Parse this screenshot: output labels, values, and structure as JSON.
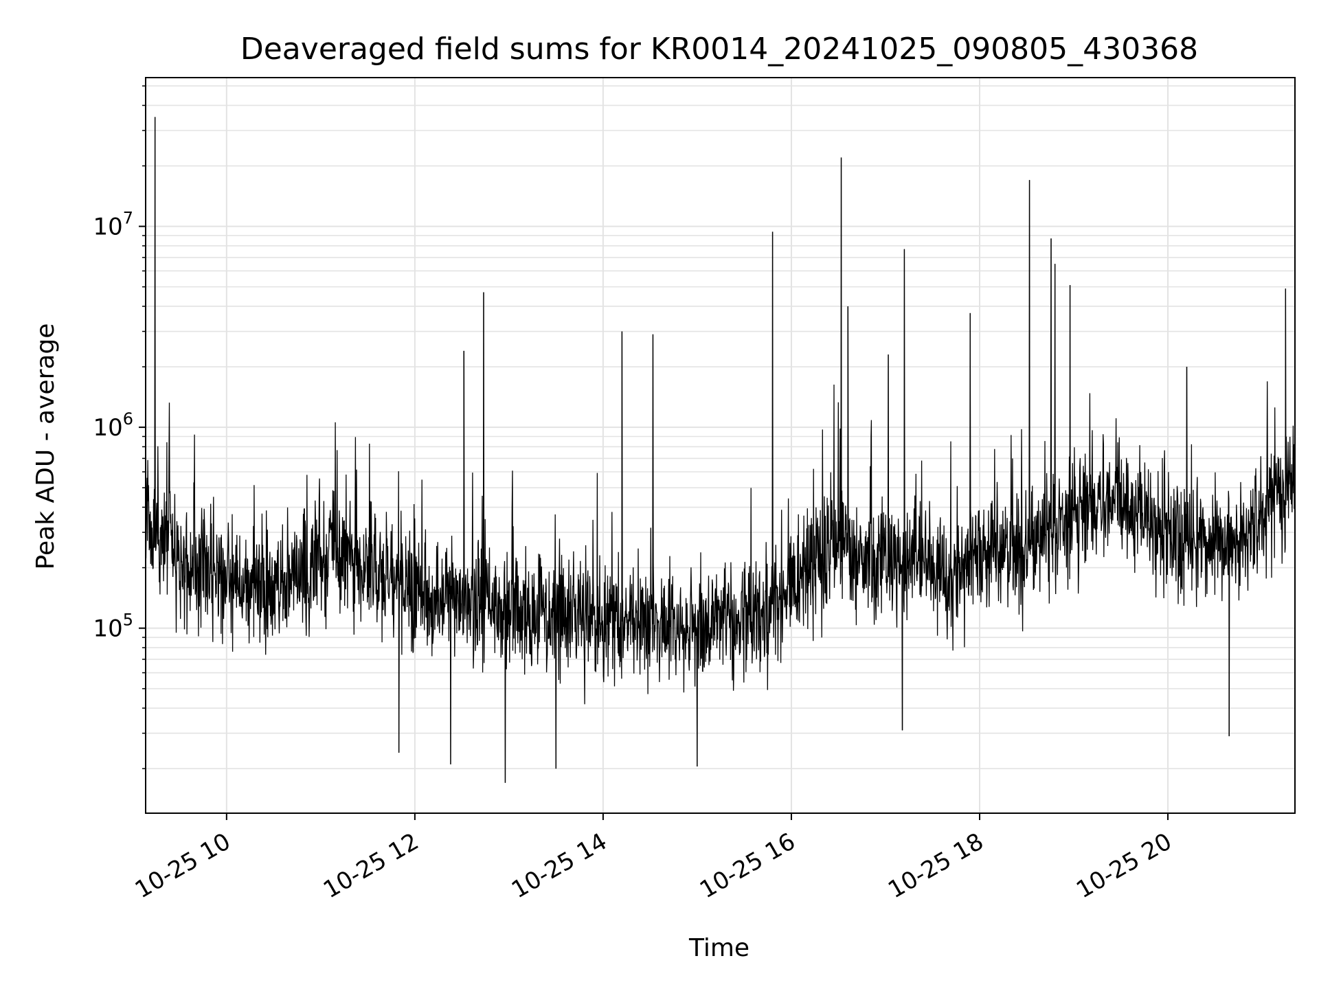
{
  "chart_data": {
    "type": "line",
    "title": "Deaveraged field sums for KR0014_20241025_090805_430368",
    "xlabel": "Time",
    "ylabel": "Peak ADU - average",
    "x_range": [
      "2024-10-25 09:08",
      "2024-10-25 21:20"
    ],
    "xlim_hours": [
      9.14,
      21.35
    ],
    "y_scale": "log",
    "ylim": [
      12000,
      55000000
    ],
    "x_ticks": [
      {
        "hour": 10,
        "label": "10-25 10"
      },
      {
        "hour": 12,
        "label": "10-25 12"
      },
      {
        "hour": 14,
        "label": "10-25 14"
      },
      {
        "hour": 16,
        "label": "10-25 16"
      },
      {
        "hour": 18,
        "label": "10-25 18"
      },
      {
        "hour": 20,
        "label": "10-25 20"
      }
    ],
    "y_ticks": [
      {
        "value": 100000,
        "base": "10",
        "exp": "5"
      },
      {
        "value": 1000000,
        "base": "10",
        "exp": "6"
      },
      {
        "value": 10000000,
        "base": "10",
        "exp": "7"
      }
    ],
    "grid": true,
    "line_color": "#000000",
    "baseline_trend": [
      {
        "hour": 9.14,
        "value": 350000
      },
      {
        "hour": 9.6,
        "value": 200000
      },
      {
        "hour": 10.5,
        "value": 150000
      },
      {
        "hour": 11.2,
        "value": 250000
      },
      {
        "hour": 12.0,
        "value": 140000
      },
      {
        "hour": 13.0,
        "value": 120000
      },
      {
        "hour": 14.0,
        "value": 110000
      },
      {
        "hour": 15.0,
        "value": 100000
      },
      {
        "hour": 15.7,
        "value": 120000
      },
      {
        "hour": 16.5,
        "value": 250000
      },
      {
        "hour": 17.5,
        "value": 200000
      },
      {
        "hour": 18.5,
        "value": 250000
      },
      {
        "hour": 19.2,
        "value": 450000
      },
      {
        "hour": 20.0,
        "value": 300000
      },
      {
        "hour": 20.7,
        "value": 250000
      },
      {
        "hour": 21.35,
        "value": 550000
      }
    ],
    "peaks": [
      {
        "hour": 9.24,
        "value": 35000000
      },
      {
        "hour": 12.73,
        "value": 4700000
      },
      {
        "hour": 12.52,
        "value": 2400000
      },
      {
        "hour": 14.2,
        "value": 3000000
      },
      {
        "hour": 14.53,
        "value": 2900000
      },
      {
        "hour": 15.8,
        "value": 9400000
      },
      {
        "hour": 16.53,
        "value": 22000000
      },
      {
        "hour": 16.6,
        "value": 4000000
      },
      {
        "hour": 17.2,
        "value": 7700000
      },
      {
        "hour": 17.03,
        "value": 2300000
      },
      {
        "hour": 17.9,
        "value": 3700000
      },
      {
        "hour": 18.53,
        "value": 17000000
      },
      {
        "hour": 18.76,
        "value": 8700000
      },
      {
        "hour": 18.96,
        "value": 5100000
      },
      {
        "hour": 18.8,
        "value": 6500000
      },
      {
        "hour": 21.25,
        "value": 4900000
      },
      {
        "hour": 20.2,
        "value": 2000000
      }
    ],
    "dips": [
      {
        "hour": 12.96,
        "value": 17000
      },
      {
        "hour": 11.83,
        "value": 24000
      },
      {
        "hour": 12.38,
        "value": 21000
      },
      {
        "hour": 13.5,
        "value": 20000
      },
      {
        "hour": 15.0,
        "value": 20500
      },
      {
        "hour": 17.18,
        "value": 31000
      },
      {
        "hour": 20.65,
        "value": 29000
      }
    ]
  }
}
